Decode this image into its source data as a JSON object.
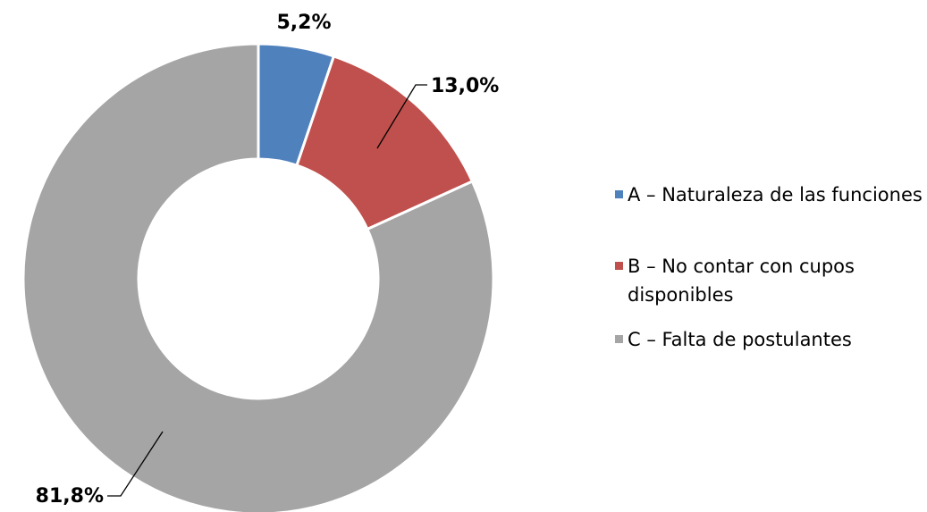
{
  "chart_data": {
    "type": "donut",
    "categories": [
      "A – Naturaleza de las funciones",
      "B – No contar con cupos disponibles",
      "C – Falta de postulantes"
    ],
    "values": [
      5.2,
      13.0,
      81.8
    ],
    "value_labels": [
      "5,2%",
      "13,0%",
      "81,8%"
    ],
    "colors": [
      "#4f81bd",
      "#c0504d",
      "#a5a5a5"
    ],
    "legend": "right"
  }
}
